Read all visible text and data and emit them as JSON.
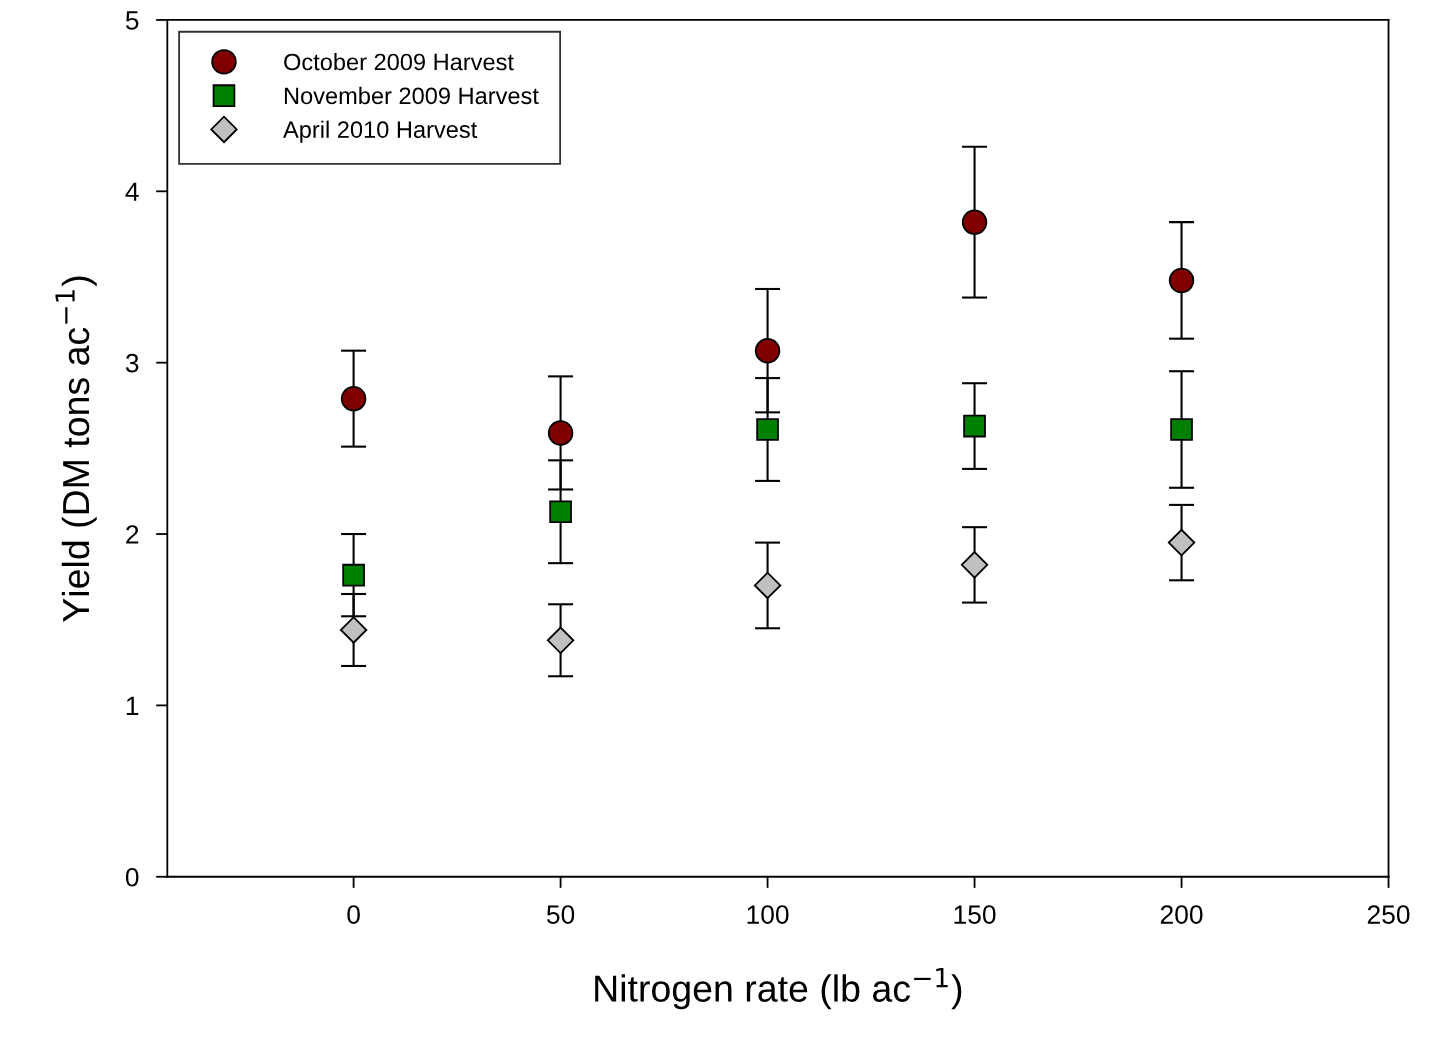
{
  "chart_data": {
    "type": "scatter",
    "xlabel": "Nitrogen rate (lb ac$^{−1}$)",
    "ylabel": "Yield (DM tons ac$^{−1}$)",
    "x": [
      0,
      50,
      100,
      150,
      200
    ],
    "series": [
      {
        "name": "October 2009 Harvest",
        "color": "#800000",
        "marker": "circle",
        "values": [
          2.79,
          2.59,
          3.07,
          3.82,
          3.48
        ],
        "errors": [
          0.28,
          0.33,
          0.36,
          0.44,
          0.34
        ]
      },
      {
        "name": "November 2009 Harvest",
        "color": "#008000",
        "marker": "square",
        "values": [
          1.76,
          2.13,
          2.61,
          2.63,
          2.61
        ],
        "errors": [
          0.24,
          0.3,
          0.3,
          0.25,
          0.34
        ]
      },
      {
        "name": "April 2010 Harvest",
        "color": "#c0c0c0",
        "marker": "diamond",
        "values": [
          1.44,
          1.38,
          1.7,
          1.82,
          1.95
        ],
        "errors": [
          0.21,
          0.21,
          0.25,
          0.22,
          0.22
        ]
      }
    ],
    "xlim": [
      -45,
      250
    ],
    "xticks": [
      0,
      50,
      100,
      150,
      200,
      250
    ],
    "ylim": [
      0,
      5
    ],
    "yticks": [
      0,
      1,
      2,
      3,
      4,
      5
    ],
    "grid": false,
    "legend": "top left"
  }
}
